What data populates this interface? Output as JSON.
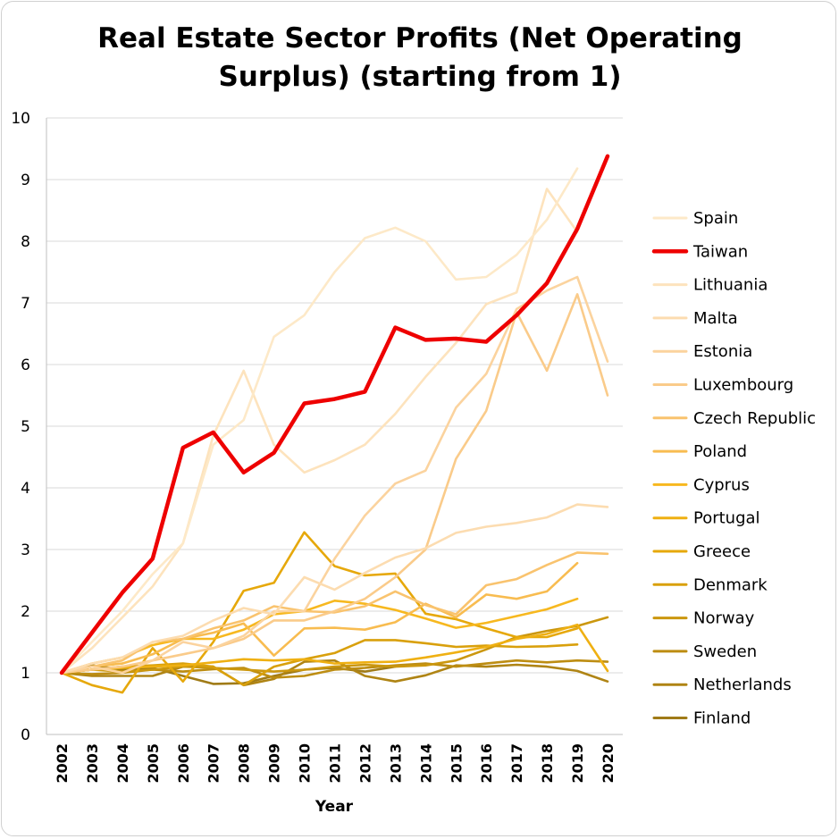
{
  "chart_data": {
    "type": "line",
    "title": "Real Estate Sector Profits (Net Operating Surplus) (starting from 1)",
    "xlabel": "Year",
    "ylabel": "",
    "ylim": [
      0,
      10
    ],
    "yticks": [
      "0",
      "1",
      "2",
      "3",
      "4",
      "5",
      "6",
      "7",
      "8",
      "9",
      "10"
    ],
    "grid": "horizontal",
    "legend_position": "right",
    "categories": [
      "2002",
      "2003",
      "2004",
      "2005",
      "2006",
      "2007",
      "2008",
      "2009",
      "2010",
      "2011",
      "2012",
      "2013",
      "2014",
      "2015",
      "2016",
      "2017",
      "2018",
      "2019",
      "2020"
    ],
    "series": [
      {
        "name": "Spain",
        "color": "#fde9c8",
        "highlight": false,
        "values": [
          1.0,
          1.5,
          2.0,
          2.6,
          3.1,
          4.7,
          5.1,
          6.45,
          6.8,
          7.5,
          8.05,
          8.22,
          8.0,
          7.38,
          7.42,
          7.78,
          8.35,
          9.18,
          null
        ]
      },
      {
        "name": "Taiwan",
        "color": "#ee0000",
        "highlight": true,
        "values": [
          1.0,
          1.65,
          2.3,
          2.85,
          4.65,
          4.9,
          4.25,
          4.57,
          5.37,
          5.44,
          5.56,
          6.6,
          6.4,
          6.42,
          6.37,
          6.8,
          7.32,
          8.2,
          9.38
        ]
      },
      {
        "name": "Lithuania",
        "color": "#fde3bd",
        "highlight": false,
        "values": [
          1.0,
          1.4,
          1.9,
          2.4,
          3.1,
          4.85,
          5.9,
          4.7,
          4.25,
          4.45,
          4.7,
          5.2,
          5.8,
          6.35,
          6.98,
          7.17,
          8.85,
          8.15,
          null
        ]
      },
      {
        "name": "Malta",
        "color": "#fcdcb0",
        "highlight": false,
        "values": [
          1.0,
          1.15,
          1.25,
          1.5,
          1.6,
          1.85,
          2.05,
          1.95,
          2.55,
          2.35,
          2.62,
          2.87,
          3.02,
          3.27,
          3.37,
          3.43,
          3.52,
          3.73,
          3.69
        ]
      },
      {
        "name": "Estonia",
        "color": "#fbd39e",
        "highlight": false,
        "values": [
          1.0,
          1.1,
          1.0,
          1.2,
          1.5,
          1.4,
          1.6,
          2.0,
          2.0,
          2.85,
          3.55,
          4.07,
          4.28,
          5.3,
          5.85,
          6.9,
          7.2,
          7.42,
          6.05
        ]
      },
      {
        "name": "Luxembourg",
        "color": "#facb8a",
        "highlight": false,
        "values": [
          1.0,
          1.05,
          1.1,
          1.2,
          1.3,
          1.4,
          1.55,
          1.85,
          1.85,
          2.0,
          2.2,
          2.55,
          3.0,
          4.47,
          5.25,
          6.85,
          5.9,
          7.14,
          5.5
        ]
      },
      {
        "name": "Czech Republic",
        "color": "#f9c36e",
        "highlight": false,
        "values": [
          1.0,
          1.1,
          1.2,
          1.5,
          1.55,
          1.72,
          1.85,
          2.08,
          2.0,
          1.98,
          2.08,
          2.32,
          2.1,
          1.95,
          2.42,
          2.52,
          2.75,
          2.95,
          2.93
        ]
      },
      {
        "name": "Poland",
        "color": "#f8bc50",
        "highlight": false,
        "values": [
          1.0,
          1.1,
          1.15,
          1.3,
          1.55,
          1.65,
          1.8,
          1.28,
          1.72,
          1.73,
          1.7,
          1.82,
          2.12,
          1.9,
          2.27,
          2.2,
          2.32,
          2.78,
          null
        ]
      },
      {
        "name": "Cyprus",
        "color": "#f7b81f",
        "highlight": false,
        "values": [
          1.0,
          1.15,
          1.25,
          1.45,
          1.55,
          1.55,
          1.7,
          1.95,
          2.0,
          2.17,
          2.12,
          2.02,
          1.88,
          1.73,
          1.81,
          1.92,
          2.03,
          2.2,
          null
        ]
      },
      {
        "name": "Portugal",
        "color": "#efb012",
        "highlight": false,
        "values": [
          1.0,
          1.05,
          1.08,
          1.1,
          1.12,
          1.17,
          1.22,
          1.2,
          1.22,
          1.15,
          1.17,
          1.18,
          1.25,
          1.33,
          1.42,
          1.55,
          1.63,
          1.78,
          1.03
        ]
      },
      {
        "name": "Greece",
        "color": "#e6a80b",
        "highlight": false,
        "values": [
          1.0,
          0.8,
          0.68,
          1.4,
          0.86,
          1.5,
          2.33,
          2.46,
          3.28,
          2.73,
          2.58,
          2.61,
          1.96,
          1.87,
          1.72,
          1.58,
          1.58,
          1.72,
          null
        ]
      },
      {
        "name": "Denmark",
        "color": "#d9a00c",
        "highlight": false,
        "values": [
          1.0,
          1.05,
          1.1,
          1.12,
          1.15,
          1.1,
          0.8,
          1.1,
          1.22,
          1.32,
          1.53,
          1.53,
          1.48,
          1.42,
          1.44,
          1.42,
          1.43,
          1.46,
          null
        ]
      },
      {
        "name": "Norway",
        "color": "#cb970e",
        "highlight": false,
        "values": [
          1.0,
          1.05,
          1.02,
          1.05,
          1.1,
          1.08,
          1.05,
          1.02,
          1.05,
          1.1,
          1.13,
          1.1,
          1.12,
          1.2,
          1.38,
          1.58,
          1.68,
          1.76,
          1.9
        ]
      },
      {
        "name": "Sweden",
        "color": "#bd8d12",
        "highlight": false,
        "values": [
          1.0,
          0.98,
          1.0,
          1.05,
          1.02,
          1.06,
          1.08,
          0.92,
          0.95,
          1.05,
          1.08,
          1.12,
          1.15,
          1.1,
          1.15,
          1.2,
          1.17,
          1.2,
          1.18
        ]
      },
      {
        "name": "Netherlands",
        "color": "#af8414",
        "highlight": false,
        "values": [
          1.0,
          0.95,
          0.95,
          0.95,
          1.1,
          1.1,
          0.8,
          0.9,
          1.18,
          1.2,
          0.95,
          0.86,
          0.96,
          1.12,
          1.1,
          1.13,
          1.1,
          1.03,
          0.86
        ]
      },
      {
        "name": "Finland",
        "color": "#a07b17",
        "highlight": false,
        "values": [
          1.0,
          1.12,
          1.05,
          1.08,
          0.95,
          0.82,
          0.83,
          0.95,
          1.05,
          1.08,
          1.02,
          1.1,
          null,
          null,
          null,
          null,
          null,
          null,
          null
        ]
      }
    ]
  }
}
